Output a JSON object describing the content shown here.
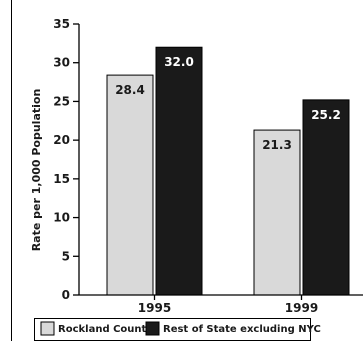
{
  "chart_data": {
    "type": "bar",
    "title": "",
    "xlabel": "",
    "ylabel": "Rate per 1,000 Population",
    "ylim": [
      0,
      35
    ],
    "yticks": [
      0,
      5,
      10,
      15,
      20,
      25,
      30,
      35
    ],
    "categories": [
      "1995",
      "1999"
    ],
    "series": [
      {
        "name": "Rockland County",
        "values": [
          28.4,
          21.3
        ],
        "color": "#d9d9d9",
        "label_color": "#1a1a1a"
      },
      {
        "name": "Rest of State excluding NYC",
        "values": [
          32.0,
          25.2
        ],
        "color": "#1a1a1a",
        "label_color": "#ffffff"
      }
    ],
    "grid": false,
    "legend_position": "bottom"
  }
}
